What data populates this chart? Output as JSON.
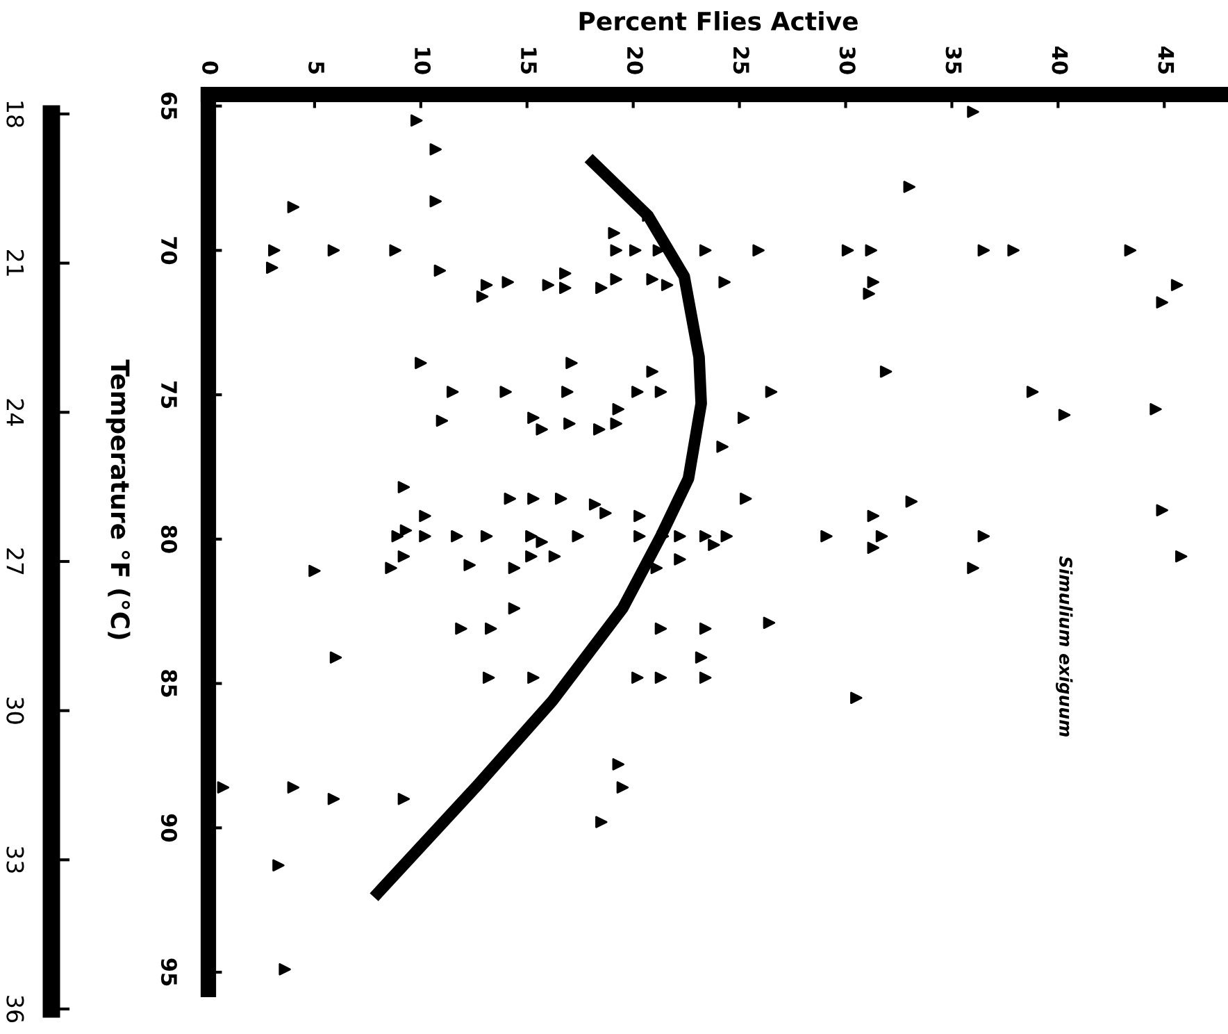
{
  "chart_data": {
    "type": "scatter",
    "xlabel": "Percent Flies Active",
    "ylabel": "Temperature °F (°C)",
    "annotations": [
      "Simulium exiguum"
    ],
    "xlim": [
      0,
      48
    ],
    "xticks": [
      0,
      5,
      10,
      15,
      20,
      25,
      30,
      35,
      40,
      45
    ],
    "ylim": [
      95.6,
      64.6
    ],
    "yticks": [
      65,
      70,
      75,
      80,
      85,
      90,
      95
    ],
    "y2lim": [
      36,
      18
    ],
    "y2ticks": [
      18,
      21,
      24,
      27,
      30,
      33,
      36
    ],
    "marker": "triangle",
    "grid": false,
    "series": [
      {
        "color": "#000000",
        "x": [
          9.8,
          10.7,
          10.7,
          4.0,
          19.1,
          3.1,
          3.0,
          5.9,
          8.8,
          10.9,
          19.2,
          20.1,
          21.2,
          23.4,
          20.7,
          13.1,
          12.9,
          14.1,
          16.0,
          16.8,
          16.8,
          18.5,
          19.2,
          20.9,
          21.6,
          24.3,
          10.0,
          17.1,
          20.9,
          11.5,
          14.0,
          16.9,
          20.2,
          21.3,
          11.0,
          15.3,
          15.7,
          17.0,
          18.4,
          19.3,
          19.2,
          25.2,
          24.2,
          9.2,
          14.2,
          15.3,
          16.6,
          18.2,
          18.7,
          20.3,
          25.3,
          10.2,
          8.9,
          9.3,
          10.2,
          11.7,
          13.1,
          15.2,
          15.7,
          17.4,
          20.3,
          21.4,
          22.2,
          23.4,
          23.8,
          24.4,
          9.2,
          8.6,
          5.0,
          12.3,
          14.4,
          15.2,
          16.3,
          21.1,
          22.2,
          14.4,
          11.9,
          13.3,
          21.3,
          23.4,
          6.0,
          23.2,
          13.2,
          15.3,
          20.2,
          21.3,
          23.4,
          19.3,
          19.5,
          18.5,
          0.7,
          4.0,
          5.9,
          9.2,
          3.3,
          3.6,
          36.0,
          33.0,
          25.9,
          30.1,
          31.2,
          36.5,
          37.9,
          43.4,
          31.3,
          31.1,
          45.6,
          44.9,
          31.9,
          26.5,
          38.8,
          40.3,
          44.6,
          33.1,
          31.3,
          44.9,
          29.1,
          31.7,
          36.5,
          31.3,
          36.0,
          45.8,
          26.4,
          30.5
        ],
        "values": [
          65.5,
          66.5,
          68.3,
          68.5,
          69.4,
          70.0,
          70.6,
          70.0,
          70.0,
          70.7,
          70.0,
          70.0,
          70.0,
          70.0,
          68.8,
          71.2,
          71.6,
          71.1,
          71.2,
          70.8,
          71.3,
          71.3,
          71.0,
          71.0,
          71.2,
          71.1,
          73.9,
          73.9,
          74.2,
          74.9,
          74.9,
          74.9,
          74.9,
          74.9,
          75.9,
          75.8,
          76.2,
          76.0,
          76.2,
          75.5,
          76.0,
          75.8,
          76.8,
          78.2,
          78.6,
          78.6,
          78.6,
          78.8,
          79.1,
          79.2,
          78.6,
          79.2,
          79.9,
          79.7,
          79.9,
          79.9,
          79.9,
          79.9,
          80.1,
          79.9,
          79.9,
          79.9,
          79.9,
          79.9,
          80.2,
          79.9,
          80.6,
          81.0,
          81.1,
          80.9,
          81.0,
          80.6,
          80.6,
          81.0,
          80.7,
          82.4,
          83.1,
          83.1,
          83.1,
          83.1,
          84.1,
          84.1,
          84.8,
          84.8,
          84.8,
          84.8,
          84.8,
          87.8,
          88.6,
          89.8,
          88.6,
          88.6,
          89.0,
          89.0,
          91.3,
          94.9,
          65.2,
          67.8,
          70.0,
          70.0,
          70.0,
          70.0,
          70.0,
          70.0,
          71.1,
          71.5,
          71.2,
          71.8,
          74.2,
          74.9,
          74.9,
          75.7,
          75.5,
          78.7,
          79.2,
          79.0,
          79.9,
          79.9,
          79.9,
          80.3,
          81.0,
          80.6,
          82.9,
          85.5
        ]
      },
      {
        "type": "line",
        "color": "#000000",
        "marker": "none",
        "x": [
          17.9,
          20.7,
          22.4,
          23.1,
          23.2,
          22.6,
          21.3,
          19.5,
          16.2,
          12.7,
          7.8
        ],
        "values": [
          66.8,
          68.8,
          70.9,
          73.7,
          75.3,
          77.9,
          79.9,
          82.4,
          85.6,
          88.5,
          92.4
        ]
      }
    ]
  }
}
